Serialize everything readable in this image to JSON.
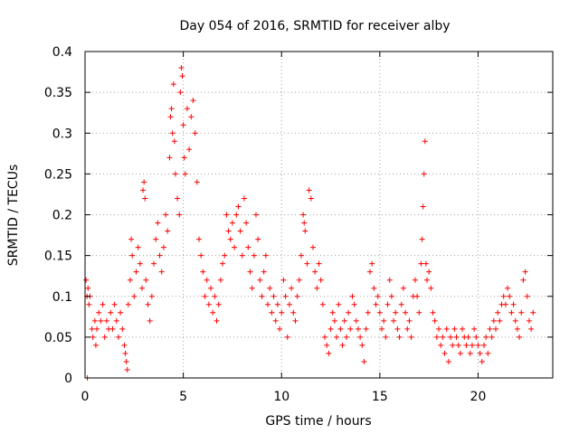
{
  "chart_data": {
    "type": "scatter",
    "title": "Day 054 of 2016, SRMTID for receiver alby",
    "xlabel": "GPS time / hours",
    "ylabel": "SRMTID / TECUs",
    "xlim": [
      0,
      23.8
    ],
    "ylim": [
      0,
      0.4
    ],
    "x_ticks": [
      0,
      5,
      10,
      15,
      20
    ],
    "x_tick_labels": [
      "0",
      "5",
      "10",
      "15",
      "20"
    ],
    "y_ticks": [
      0,
      0.05,
      0.1,
      0.15,
      0.2,
      0.25,
      0.3,
      0.35,
      0.4
    ],
    "y_tick_labels": [
      "0",
      "0.05",
      "0.1",
      "0.15",
      "0.2",
      "0.25",
      "0.3",
      "0.35",
      "0.4"
    ],
    "grid": true,
    "marker": "+",
    "color": "#ff0000",
    "series": [
      {
        "points": [
          [
            0.05,
            0.12
          ],
          [
            0.1,
            0.1
          ],
          [
            0.15,
            0.11
          ],
          [
            0.12,
            0.0
          ],
          [
            0.2,
            0.09
          ],
          [
            0.25,
            0.1
          ],
          [
            0.35,
            0.06
          ],
          [
            0.4,
            0.05
          ],
          [
            0.5,
            0.07
          ],
          [
            0.55,
            0.04
          ],
          [
            0.6,
            0.06
          ],
          [
            0.7,
            0.08
          ],
          [
            0.8,
            0.07
          ],
          [
            0.9,
            0.09
          ],
          [
            1.0,
            0.05
          ],
          [
            1.1,
            0.07
          ],
          [
            1.2,
            0.06
          ],
          [
            1.3,
            0.08
          ],
          [
            1.4,
            0.06
          ],
          [
            1.5,
            0.09
          ],
          [
            1.6,
            0.07
          ],
          [
            1.7,
            0.05
          ],
          [
            1.8,
            0.08
          ],
          [
            1.9,
            0.06
          ],
          [
            2.0,
            0.04
          ],
          [
            2.05,
            0.03
          ],
          [
            2.1,
            0.02
          ],
          [
            2.15,
            0.01
          ],
          [
            2.2,
            0.09
          ],
          [
            2.3,
            0.12
          ],
          [
            2.35,
            0.17
          ],
          [
            2.4,
            0.15
          ],
          [
            2.5,
            0.1
          ],
          [
            2.6,
            0.13
          ],
          [
            2.7,
            0.16
          ],
          [
            2.8,
            0.14
          ],
          [
            2.9,
            0.11
          ],
          [
            2.95,
            0.23
          ],
          [
            3.0,
            0.24
          ],
          [
            3.05,
            0.22
          ],
          [
            3.1,
            0.12
          ],
          [
            3.2,
            0.09
          ],
          [
            3.3,
            0.07
          ],
          [
            3.4,
            0.1
          ],
          [
            3.5,
            0.14
          ],
          [
            3.6,
            0.17
          ],
          [
            3.7,
            0.19
          ],
          [
            3.8,
            0.15
          ],
          [
            3.9,
            0.13
          ],
          [
            4.0,
            0.16
          ],
          [
            4.1,
            0.2
          ],
          [
            4.2,
            0.18
          ],
          [
            4.3,
            0.27
          ],
          [
            4.35,
            0.32
          ],
          [
            4.4,
            0.33
          ],
          [
            4.45,
            0.3
          ],
          [
            4.5,
            0.36
          ],
          [
            4.55,
            0.29
          ],
          [
            4.6,
            0.25
          ],
          [
            4.7,
            0.22
          ],
          [
            4.8,
            0.2
          ],
          [
            4.85,
            0.35
          ],
          [
            4.9,
            0.38
          ],
          [
            4.95,
            0.37
          ],
          [
            5.0,
            0.31
          ],
          [
            5.05,
            0.27
          ],
          [
            5.1,
            0.25
          ],
          [
            5.2,
            0.33
          ],
          [
            5.3,
            0.28
          ],
          [
            5.4,
            0.32
          ],
          [
            5.5,
            0.34
          ],
          [
            5.6,
            0.3
          ],
          [
            5.7,
            0.24
          ],
          [
            5.8,
            0.17
          ],
          [
            5.9,
            0.15
          ],
          [
            6.0,
            0.13
          ],
          [
            6.1,
            0.1
          ],
          [
            6.2,
            0.12
          ],
          [
            6.3,
            0.09
          ],
          [
            6.4,
            0.11
          ],
          [
            6.5,
            0.08
          ],
          [
            6.6,
            0.1
          ],
          [
            6.7,
            0.07
          ],
          [
            6.8,
            0.09
          ],
          [
            6.9,
            0.12
          ],
          [
            7.0,
            0.14
          ],
          [
            7.1,
            0.15
          ],
          [
            7.2,
            0.2
          ],
          [
            7.3,
            0.18
          ],
          [
            7.4,
            0.17
          ],
          [
            7.5,
            0.19
          ],
          [
            7.6,
            0.16
          ],
          [
            7.7,
            0.2
          ],
          [
            7.8,
            0.21
          ],
          [
            7.9,
            0.18
          ],
          [
            8.0,
            0.15
          ],
          [
            8.1,
            0.22
          ],
          [
            8.2,
            0.19
          ],
          [
            8.3,
            0.16
          ],
          [
            8.4,
            0.13
          ],
          [
            8.5,
            0.11
          ],
          [
            8.6,
            0.15
          ],
          [
            8.7,
            0.2
          ],
          [
            8.8,
            0.17
          ],
          [
            8.9,
            0.12
          ],
          [
            9.0,
            0.1
          ],
          [
            9.1,
            0.13
          ],
          [
            9.2,
            0.15
          ],
          [
            9.3,
            0.09
          ],
          [
            9.4,
            0.11
          ],
          [
            9.5,
            0.08
          ],
          [
            9.6,
            0.1
          ],
          [
            9.7,
            0.07
          ],
          [
            9.8,
            0.09
          ],
          [
            9.9,
            0.06
          ],
          [
            10.0,
            0.08
          ],
          [
            10.1,
            0.12
          ],
          [
            10.2,
            0.1
          ],
          [
            10.3,
            0.05
          ],
          [
            10.4,
            0.09
          ],
          [
            10.5,
            0.11
          ],
          [
            10.6,
            0.08
          ],
          [
            10.7,
            0.07
          ],
          [
            10.8,
            0.1
          ],
          [
            10.9,
            0.12
          ],
          [
            11.0,
            0.15
          ],
          [
            11.1,
            0.2
          ],
          [
            11.15,
            0.19
          ],
          [
            11.2,
            0.18
          ],
          [
            11.3,
            0.14
          ],
          [
            11.4,
            0.23
          ],
          [
            11.5,
            0.22
          ],
          [
            11.6,
            0.16
          ],
          [
            11.7,
            0.13
          ],
          [
            11.8,
            0.11
          ],
          [
            11.9,
            0.14
          ],
          [
            12.0,
            0.12
          ],
          [
            12.1,
            0.09
          ],
          [
            12.2,
            0.05
          ],
          [
            12.3,
            0.04
          ],
          [
            12.4,
            0.03
          ],
          [
            12.5,
            0.06
          ],
          [
            12.6,
            0.08
          ],
          [
            12.7,
            0.07
          ],
          [
            12.8,
            0.05
          ],
          [
            12.9,
            0.09
          ],
          [
            13.0,
            0.06
          ],
          [
            13.1,
            0.04
          ],
          [
            13.2,
            0.07
          ],
          [
            13.3,
            0.05
          ],
          [
            13.4,
            0.08
          ],
          [
            13.5,
            0.06
          ],
          [
            13.6,
            0.1
          ],
          [
            13.7,
            0.09
          ],
          [
            13.8,
            0.07
          ],
          [
            13.9,
            0.06
          ],
          [
            14.0,
            0.05
          ],
          [
            14.1,
            0.04
          ],
          [
            14.2,
            0.02
          ],
          [
            14.3,
            0.06
          ],
          [
            14.4,
            0.08
          ],
          [
            14.5,
            0.13
          ],
          [
            14.6,
            0.14
          ],
          [
            14.7,
            0.11
          ],
          [
            14.8,
            0.09
          ],
          [
            14.9,
            0.1
          ],
          [
            15.0,
            0.08
          ],
          [
            15.1,
            0.06
          ],
          [
            15.2,
            0.07
          ],
          [
            15.3,
            0.05
          ],
          [
            15.4,
            0.09
          ],
          [
            15.5,
            0.12
          ],
          [
            15.6,
            0.1
          ],
          [
            15.7,
            0.07
          ],
          [
            15.8,
            0.08
          ],
          [
            15.9,
            0.06
          ],
          [
            16.0,
            0.05
          ],
          [
            16.1,
            0.09
          ],
          [
            16.2,
            0.11
          ],
          [
            16.3,
            0.08
          ],
          [
            16.4,
            0.06
          ],
          [
            16.5,
            0.07
          ],
          [
            16.6,
            0.05
          ],
          [
            16.7,
            0.1
          ],
          [
            16.8,
            0.12
          ],
          [
            16.9,
            0.1
          ],
          [
            17.0,
            0.08
          ],
          [
            17.1,
            0.14
          ],
          [
            17.15,
            0.17
          ],
          [
            17.2,
            0.21
          ],
          [
            17.25,
            0.25
          ],
          [
            17.3,
            0.29
          ],
          [
            17.35,
            0.14
          ],
          [
            17.4,
            0.12
          ],
          [
            17.5,
            0.13
          ],
          [
            17.6,
            0.11
          ],
          [
            17.7,
            0.08
          ],
          [
            17.8,
            0.07
          ],
          [
            17.9,
            0.05
          ],
          [
            18.0,
            0.06
          ],
          [
            18.1,
            0.04
          ],
          [
            18.2,
            0.05
          ],
          [
            18.3,
            0.03
          ],
          [
            18.4,
            0.06
          ],
          [
            18.5,
            0.02
          ],
          [
            18.6,
            0.05
          ],
          [
            18.7,
            0.04
          ],
          [
            18.8,
            0.06
          ],
          [
            18.9,
            0.05
          ],
          [
            19.0,
            0.04
          ],
          [
            19.1,
            0.03
          ],
          [
            19.2,
            0.06
          ],
          [
            19.3,
            0.05
          ],
          [
            19.4,
            0.04
          ],
          [
            19.5,
            0.05
          ],
          [
            19.6,
            0.03
          ],
          [
            19.7,
            0.04
          ],
          [
            19.8,
            0.06
          ],
          [
            19.9,
            0.05
          ],
          [
            20.0,
            0.04
          ],
          [
            20.1,
            0.03
          ],
          [
            20.2,
            0.02
          ],
          [
            20.3,
            0.04
          ],
          [
            20.4,
            0.05
          ],
          [
            20.5,
            0.03
          ],
          [
            20.6,
            0.06
          ],
          [
            20.7,
            0.05
          ],
          [
            20.8,
            0.07
          ],
          [
            20.9,
            0.06
          ],
          [
            21.0,
            0.08
          ],
          [
            21.1,
            0.07
          ],
          [
            21.2,
            0.09
          ],
          [
            21.3,
            0.1
          ],
          [
            21.4,
            0.09
          ],
          [
            21.5,
            0.11
          ],
          [
            21.6,
            0.1
          ],
          [
            21.7,
            0.08
          ],
          [
            21.8,
            0.09
          ],
          [
            21.9,
            0.07
          ],
          [
            22.0,
            0.06
          ],
          [
            22.1,
            0.05
          ],
          [
            22.2,
            0.08
          ],
          [
            22.3,
            0.12
          ],
          [
            22.4,
            0.13
          ],
          [
            22.5,
            0.1
          ],
          [
            22.6,
            0.07
          ],
          [
            22.7,
            0.06
          ],
          [
            22.8,
            0.08
          ]
        ]
      }
    ]
  }
}
